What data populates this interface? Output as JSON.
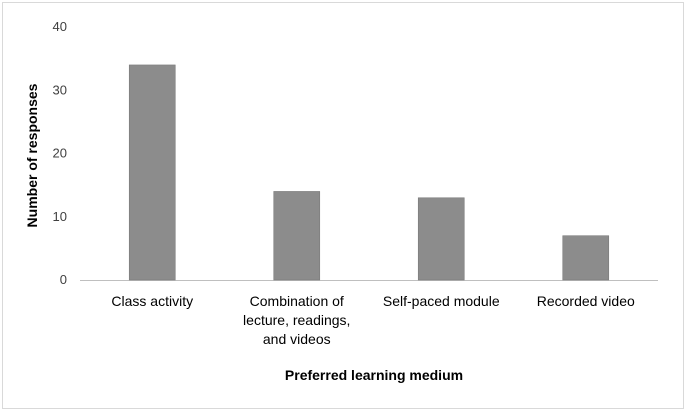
{
  "chart_data": {
    "type": "bar",
    "categories": [
      [
        "Class activity"
      ],
      [
        "Combination of",
        "lecture, readings,",
        "and videos"
      ],
      [
        "Self-paced module"
      ],
      [
        "Recorded video"
      ]
    ],
    "values": [
      34,
      14,
      13,
      7
    ],
    "ylim": [
      0,
      40
    ],
    "yticks": [
      "0",
      "10",
      "20",
      "30",
      "40"
    ],
    "xlabel": "Preferred learning medium",
    "ylabel": "Number of responses",
    "grid": false,
    "legend": "none",
    "colors": {
      "bar": "#8c8c8c",
      "bar_edge": "#7a7a7a",
      "axis": "#bfbfbf",
      "frame": "#d9d9d9"
    }
  }
}
